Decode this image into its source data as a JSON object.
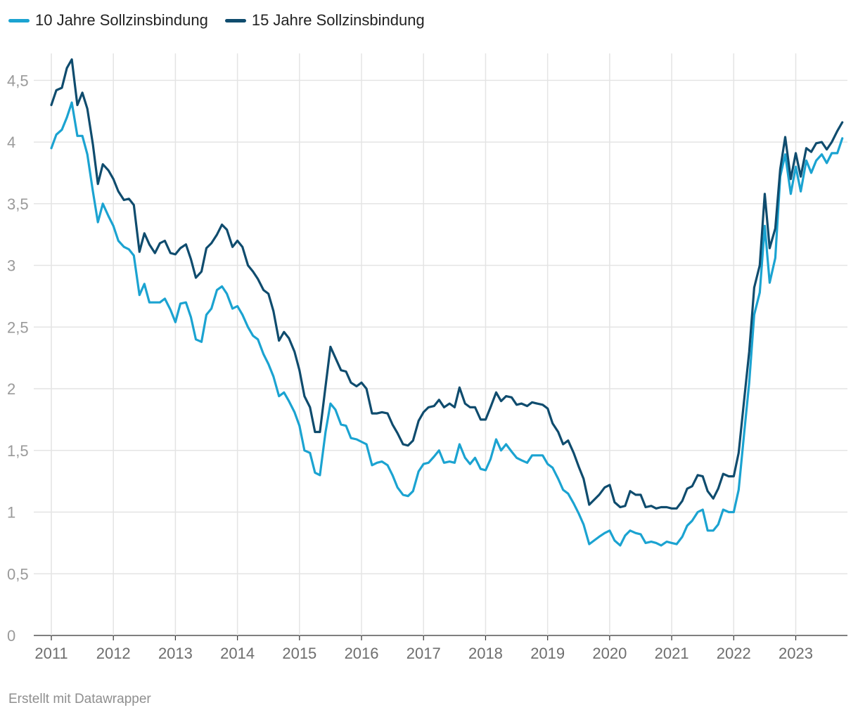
{
  "chart_data": {
    "type": "line",
    "title": "",
    "xlabel": "",
    "ylabel": "",
    "x_range": [
      2011,
      2023.8333
    ],
    "ylim": [
      0,
      4.65
    ],
    "yticks": [
      0,
      0.5,
      1,
      1.5,
      2,
      2.5,
      3,
      3.5,
      4,
      4.5
    ],
    "ytick_labels": [
      "0",
      "0,5",
      "1",
      "1,5",
      "2",
      "2,5",
      "3",
      "3,5",
      "4",
      "4,5"
    ],
    "xticks": [
      2011,
      2012,
      2013,
      2014,
      2015,
      2016,
      2017,
      2018,
      2019,
      2020,
      2021,
      2022,
      2023
    ],
    "xtick_labels": [
      "2011",
      "2012",
      "2013",
      "2014",
      "2015",
      "2016",
      "2017",
      "2018",
      "2019",
      "2020",
      "2021",
      "2022",
      "2023"
    ],
    "grid": true,
    "legend_position": "top-left",
    "series": [
      {
        "name": "10 Jahre Sollzinsbindung",
        "color": "#1ba3d1",
        "x": [
          2011.0,
          2011.08,
          2011.17,
          2011.25,
          2011.33,
          2011.42,
          2011.5,
          2011.58,
          2011.67,
          2011.75,
          2011.83,
          2011.92,
          2012.0,
          2012.08,
          2012.17,
          2012.25,
          2012.33,
          2012.42,
          2012.5,
          2012.58,
          2012.67,
          2012.75,
          2012.83,
          2012.92,
          2013.0,
          2013.08,
          2013.17,
          2013.25,
          2013.33,
          2013.42,
          2013.5,
          2013.58,
          2013.67,
          2013.75,
          2013.83,
          2013.92,
          2014.0,
          2014.08,
          2014.17,
          2014.25,
          2014.33,
          2014.42,
          2014.5,
          2014.58,
          2014.67,
          2014.75,
          2014.83,
          2014.92,
          2015.0,
          2015.08,
          2015.17,
          2015.25,
          2015.33,
          2015.42,
          2015.5,
          2015.58,
          2015.67,
          2015.75,
          2015.83,
          2015.92,
          2016.0,
          2016.08,
          2016.17,
          2016.25,
          2016.33,
          2016.42,
          2016.5,
          2016.58,
          2016.67,
          2016.75,
          2016.83,
          2016.92,
          2017.0,
          2017.08,
          2017.17,
          2017.25,
          2017.33,
          2017.42,
          2017.5,
          2017.58,
          2017.67,
          2017.75,
          2017.83,
          2017.92,
          2018.0,
          2018.08,
          2018.17,
          2018.25,
          2018.33,
          2018.42,
          2018.5,
          2018.58,
          2018.67,
          2018.75,
          2018.83,
          2018.92,
          2019.0,
          2019.08,
          2019.17,
          2019.25,
          2019.33,
          2019.42,
          2019.5,
          2019.58,
          2019.67,
          2019.75,
          2019.83,
          2019.92,
          2020.0,
          2020.08,
          2020.17,
          2020.25,
          2020.33,
          2020.42,
          2020.5,
          2020.58,
          2020.67,
          2020.75,
          2020.83,
          2020.92,
          2021.0,
          2021.08,
          2021.17,
          2021.25,
          2021.33,
          2021.42,
          2021.5,
          2021.58,
          2021.67,
          2021.75,
          2021.83,
          2021.92,
          2022.0,
          2022.08,
          2022.17,
          2022.25,
          2022.33,
          2022.42,
          2022.5,
          2022.58,
          2022.67,
          2022.75,
          2022.83,
          2022.92,
          2023.0,
          2023.08,
          2023.17,
          2023.25,
          2023.33,
          2023.42,
          2023.5,
          2023.58,
          2023.67,
          2023.75
        ],
        "values": [
          3.95,
          4.06,
          4.1,
          4.2,
          4.32,
          4.05,
          4.05,
          3.9,
          3.6,
          3.35,
          3.5,
          3.4,
          3.32,
          3.2,
          3.15,
          3.13,
          3.08,
          2.76,
          2.85,
          2.7,
          2.7,
          2.7,
          2.73,
          2.64,
          2.54,
          2.69,
          2.7,
          2.58,
          2.4,
          2.38,
          2.6,
          2.65,
          2.8,
          2.83,
          2.77,
          2.65,
          2.67,
          2.6,
          2.5,
          2.43,
          2.4,
          2.28,
          2.2,
          2.1,
          1.94,
          1.97,
          1.9,
          1.81,
          1.7,
          1.5,
          1.48,
          1.32,
          1.3,
          1.65,
          1.88,
          1.83,
          1.71,
          1.7,
          1.6,
          1.59,
          1.57,
          1.55,
          1.38,
          1.4,
          1.41,
          1.38,
          1.3,
          1.2,
          1.14,
          1.13,
          1.17,
          1.33,
          1.39,
          1.4,
          1.45,
          1.5,
          1.4,
          1.41,
          1.4,
          1.55,
          1.44,
          1.39,
          1.44,
          1.35,
          1.34,
          1.43,
          1.59,
          1.5,
          1.55,
          1.49,
          1.44,
          1.42,
          1.4,
          1.46,
          1.46,
          1.46,
          1.39,
          1.36,
          1.27,
          1.18,
          1.15,
          1.07,
          0.99,
          0.9,
          0.74,
          0.77,
          0.8,
          0.83,
          0.85,
          0.77,
          0.73,
          0.81,
          0.85,
          0.83,
          0.82,
          0.75,
          0.76,
          0.75,
          0.73,
          0.76,
          0.75,
          0.74,
          0.8,
          0.89,
          0.93,
          1.0,
          1.02,
          0.85,
          0.85,
          0.9,
          1.02,
          1.0,
          1.0,
          1.18,
          1.65,
          2.05,
          2.6,
          2.78,
          3.32,
          2.86,
          3.06,
          3.72,
          3.9,
          3.58,
          3.8,
          3.6,
          3.85,
          3.75,
          3.85,
          3.9,
          3.83,
          3.91,
          3.91,
          4.03
        ]
      },
      {
        "name": "15 Jahre Sollzinsbindung",
        "color": "#0f4c6e",
        "x": [
          2011.0,
          2011.08,
          2011.17,
          2011.25,
          2011.33,
          2011.42,
          2011.5,
          2011.58,
          2011.67,
          2011.75,
          2011.83,
          2011.92,
          2012.0,
          2012.08,
          2012.17,
          2012.25,
          2012.33,
          2012.42,
          2012.5,
          2012.58,
          2012.67,
          2012.75,
          2012.83,
          2012.92,
          2013.0,
          2013.08,
          2013.17,
          2013.25,
          2013.33,
          2013.42,
          2013.5,
          2013.58,
          2013.67,
          2013.75,
          2013.83,
          2013.92,
          2014.0,
          2014.08,
          2014.17,
          2014.25,
          2014.33,
          2014.42,
          2014.5,
          2014.58,
          2014.67,
          2014.75,
          2014.83,
          2014.92,
          2015.0,
          2015.08,
          2015.17,
          2015.25,
          2015.33,
          2015.42,
          2015.5,
          2015.58,
          2015.67,
          2015.75,
          2015.83,
          2015.92,
          2016.0,
          2016.08,
          2016.17,
          2016.25,
          2016.33,
          2016.42,
          2016.5,
          2016.58,
          2016.67,
          2016.75,
          2016.83,
          2016.92,
          2017.0,
          2017.08,
          2017.17,
          2017.25,
          2017.33,
          2017.42,
          2017.5,
          2017.58,
          2017.67,
          2017.75,
          2017.83,
          2017.92,
          2018.0,
          2018.08,
          2018.17,
          2018.25,
          2018.33,
          2018.42,
          2018.5,
          2018.58,
          2018.67,
          2018.75,
          2018.83,
          2018.92,
          2019.0,
          2019.08,
          2019.17,
          2019.25,
          2019.33,
          2019.42,
          2019.5,
          2019.58,
          2019.67,
          2019.75,
          2019.83,
          2019.92,
          2020.0,
          2020.08,
          2020.17,
          2020.25,
          2020.33,
          2020.42,
          2020.5,
          2020.58,
          2020.67,
          2020.75,
          2020.83,
          2020.92,
          2021.0,
          2021.08,
          2021.17,
          2021.25,
          2021.33,
          2021.42,
          2021.5,
          2021.58,
          2021.67,
          2021.75,
          2021.83,
          2021.92,
          2022.0,
          2022.08,
          2022.17,
          2022.25,
          2022.33,
          2022.42,
          2022.5,
          2022.58,
          2022.67,
          2022.75,
          2022.83,
          2022.92,
          2023.0,
          2023.08,
          2023.17,
          2023.25,
          2023.33,
          2023.42,
          2023.5,
          2023.58,
          2023.67,
          2023.75
        ],
        "values": [
          4.3,
          4.42,
          4.44,
          4.6,
          4.67,
          4.3,
          4.4,
          4.27,
          3.98,
          3.66,
          3.82,
          3.77,
          3.7,
          3.6,
          3.53,
          3.54,
          3.49,
          3.11,
          3.26,
          3.17,
          3.1,
          3.18,
          3.2,
          3.1,
          3.09,
          3.14,
          3.17,
          3.05,
          2.9,
          2.95,
          3.14,
          3.18,
          3.25,
          3.33,
          3.29,
          3.15,
          3.2,
          3.15,
          3.0,
          2.95,
          2.89,
          2.8,
          2.77,
          2.63,
          2.39,
          2.46,
          2.41,
          2.3,
          2.15,
          1.94,
          1.85,
          1.65,
          1.65,
          2.02,
          2.34,
          2.25,
          2.15,
          2.14,
          2.05,
          2.02,
          2.05,
          2.0,
          1.8,
          1.8,
          1.81,
          1.8,
          1.71,
          1.64,
          1.55,
          1.54,
          1.58,
          1.74,
          1.81,
          1.85,
          1.86,
          1.91,
          1.85,
          1.88,
          1.85,
          2.01,
          1.88,
          1.85,
          1.85,
          1.75,
          1.75,
          1.85,
          1.97,
          1.9,
          1.94,
          1.93,
          1.87,
          1.88,
          1.86,
          1.89,
          1.88,
          1.87,
          1.84,
          1.72,
          1.65,
          1.55,
          1.58,
          1.48,
          1.37,
          1.27,
          1.06,
          1.1,
          1.14,
          1.2,
          1.22,
          1.08,
          1.04,
          1.05,
          1.17,
          1.14,
          1.14,
          1.04,
          1.05,
          1.03,
          1.04,
          1.04,
          1.03,
          1.03,
          1.09,
          1.19,
          1.21,
          1.3,
          1.29,
          1.17,
          1.11,
          1.19,
          1.31,
          1.29,
          1.29,
          1.48,
          1.92,
          2.3,
          2.82,
          3.0,
          3.58,
          3.14,
          3.3,
          3.78,
          4.04,
          3.7,
          3.91,
          3.72,
          3.95,
          3.92,
          3.99,
          4.0,
          3.94,
          4.0,
          4.09,
          4.16
        ]
      }
    ]
  },
  "footer": {
    "credit": "Erstellt mit Datawrapper"
  }
}
